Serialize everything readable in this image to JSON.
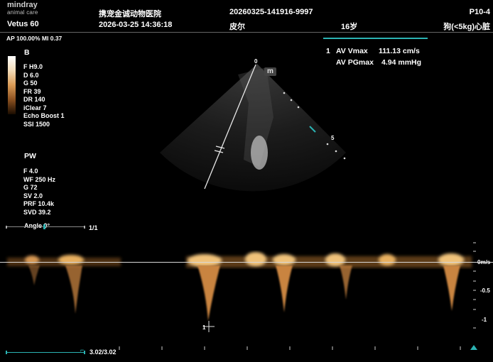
{
  "header": {
    "brand": "mindray",
    "brand_sub": "animal care",
    "device": "Vetus 60",
    "hospital": "携宠金诚动物医院",
    "datetime": "2026-03-25  14:36:18",
    "exam_id": "20260325-141916-9997",
    "patient_name": "皮尔",
    "age": "16岁",
    "probe": "P10-4",
    "preset": "狗(<5kg)心脏"
  },
  "power": "AP 100.00%  MI 0.37",
  "b_mode": {
    "label": "B",
    "params": [
      "F H9.0",
      "D 6.0",
      "G 50",
      "FR 39",
      "DR 140",
      "iClear 7",
      "Echo Boost 1",
      "SSI 1500"
    ]
  },
  "pw_mode": {
    "label": "PW",
    "params": [
      "F 4.0",
      "WF 250 Hz",
      "G 72",
      "SV 2.0",
      "PRF 10.4k",
      "SVD 39.2"
    ],
    "angle": "Angle  0°",
    "page": "1/1"
  },
  "measurements": {
    "index": "1",
    "rows": [
      {
        "name": "AV Vmax",
        "value": "111.13 cm/s"
      },
      {
        "name": "AV PGmax",
        "value": "4.94 mmHg"
      }
    ]
  },
  "image_markers": {
    "depth_top": "0",
    "depth_5": "5",
    "m_badge": "m"
  },
  "spectrum_scale": {
    "zero": "0m/s",
    "neg05": "-0.5",
    "neg1": "-1"
  },
  "cursor_label": "1",
  "frame_counter": "3.02/3.02",
  "colors": {
    "accent": "#2bb3b3",
    "doppler": "#e0a050"
  }
}
